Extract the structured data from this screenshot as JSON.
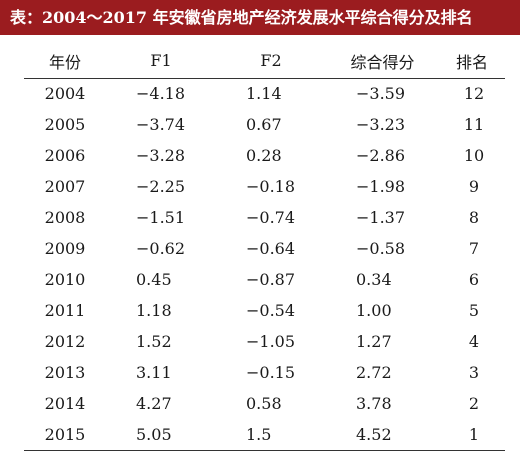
{
  "title": "表：2004～2017 年安徽省房地产经济发展水平综合得分及排名",
  "colors": {
    "title_bg": "#9b1c1f",
    "title_text": "#ffffff",
    "rule": "#333333"
  },
  "table": {
    "headers": [
      "年份",
      "F1",
      "F2",
      "综合得分",
      "排名"
    ],
    "rows": [
      {
        "year": "2004",
        "f1": "−4.18",
        "f2": "1.14",
        "score": "−3.59",
        "rank": "12"
      },
      {
        "year": "2005",
        "f1": "−3.74",
        "f2": "0.67",
        "score": "−3.23",
        "rank": "11"
      },
      {
        "year": "2006",
        "f1": "−3.28",
        "f2": "0.28",
        "score": "−2.86",
        "rank": "10"
      },
      {
        "year": "2007",
        "f1": "−2.25",
        "f2": "−0.18",
        "score": "−1.98",
        "rank": "9"
      },
      {
        "year": "2008",
        "f1": "−1.51",
        "f2": "−0.74",
        "score": "−1.37",
        "rank": "8"
      },
      {
        "year": "2009",
        "f1": "−0.62",
        "f2": "−0.64",
        "score": "−0.58",
        "rank": "7"
      },
      {
        "year": "2010",
        "f1": "0.45",
        "f2": "−0.87",
        "score": "0.34",
        "rank": "6"
      },
      {
        "year": "2011",
        "f1": "1.18",
        "f2": "−0.54",
        "score": "1.00",
        "rank": "5"
      },
      {
        "year": "2012",
        "f1": "1.52",
        "f2": "−1.05",
        "score": "1.27",
        "rank": "4"
      },
      {
        "year": "2013",
        "f1": "3.11",
        "f2": "−0.15",
        "score": "2.72",
        "rank": "3"
      },
      {
        "year": "2014",
        "f1": "4.27",
        "f2": "0.58",
        "score": "3.78",
        "rank": "2"
      },
      {
        "year": "2015",
        "f1": "5.05",
        "f2": "1.5",
        "score": "4.52",
        "rank": "1"
      }
    ]
  }
}
